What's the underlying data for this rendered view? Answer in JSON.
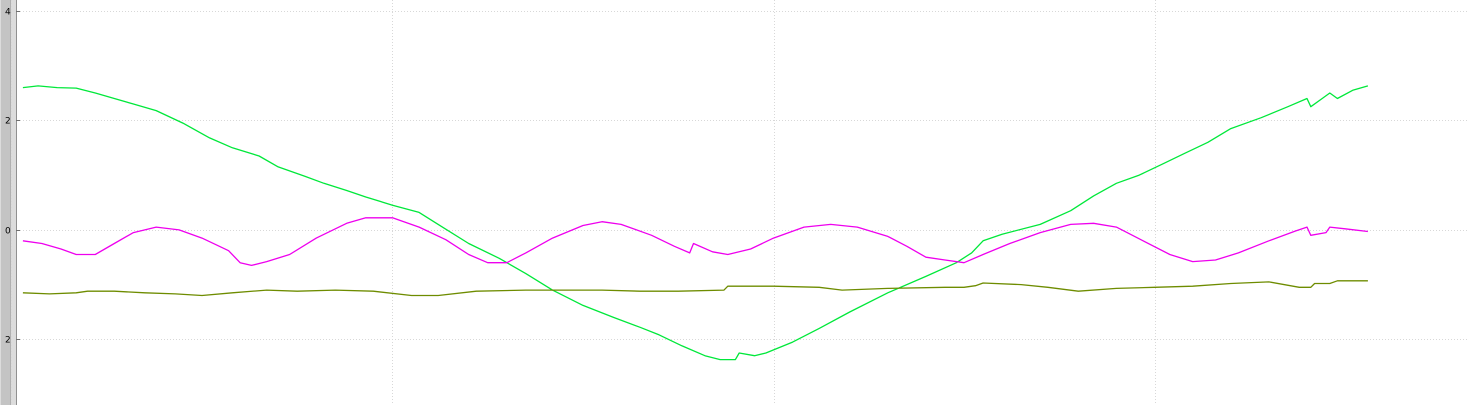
{
  "chart_data": {
    "type": "line",
    "title": "",
    "xlabel": "",
    "ylabel": "",
    "grid": true,
    "ylim": [
      -3.2,
      4.2
    ],
    "xlim": [
      -0.03,
      3.82
    ],
    "y_ticks": [
      {
        "value": 4,
        "label": "4"
      },
      {
        "value": 2,
        "label": "2"
      },
      {
        "value": 0,
        "label": "0"
      },
      {
        "value": -2,
        "label": "2"
      }
    ],
    "x_grid_values": [
      0,
      1,
      2,
      3
    ],
    "series": [
      {
        "color": "#00e83a",
        "points": [
          [
            0.03,
            2.6
          ],
          [
            0.07,
            2.63
          ],
          [
            0.12,
            2.6
          ],
          [
            0.17,
            2.59
          ],
          [
            0.22,
            2.5
          ],
          [
            0.27,
            2.4
          ],
          [
            0.32,
            2.3
          ],
          [
            0.38,
            2.18
          ],
          [
            0.45,
            1.95
          ],
          [
            0.52,
            1.68
          ],
          [
            0.58,
            1.5
          ],
          [
            0.65,
            1.35
          ],
          [
            0.7,
            1.15
          ],
          [
            0.77,
            0.98
          ],
          [
            0.82,
            0.85
          ],
          [
            0.88,
            0.72
          ],
          [
            0.93,
            0.6
          ],
          [
            1.0,
            0.45
          ],
          [
            1.07,
            0.32
          ],
          [
            1.12,
            0.1
          ],
          [
            1.2,
            -0.25
          ],
          [
            1.28,
            -0.52
          ],
          [
            1.35,
            -0.8
          ],
          [
            1.42,
            -1.1
          ],
          [
            1.5,
            -1.38
          ],
          [
            1.58,
            -1.6
          ],
          [
            1.65,
            -1.78
          ],
          [
            1.7,
            -1.92
          ],
          [
            1.76,
            -2.12
          ],
          [
            1.82,
            -2.3
          ],
          [
            1.86,
            -2.37
          ],
          [
            1.9,
            -2.37
          ],
          [
            1.91,
            -2.25
          ],
          [
            1.95,
            -2.3
          ],
          [
            1.98,
            -2.25
          ],
          [
            2.05,
            -2.05
          ],
          [
            2.12,
            -1.8
          ],
          [
            2.2,
            -1.5
          ],
          [
            2.3,
            -1.15
          ],
          [
            2.4,
            -0.85
          ],
          [
            2.48,
            -0.6
          ],
          [
            2.52,
            -0.42
          ],
          [
            2.55,
            -0.2
          ],
          [
            2.6,
            -0.08
          ],
          [
            2.7,
            0.1
          ],
          [
            2.78,
            0.35
          ],
          [
            2.84,
            0.62
          ],
          [
            2.9,
            0.85
          ],
          [
            2.96,
            1.0
          ],
          [
            3.02,
            1.2
          ],
          [
            3.08,
            1.4
          ],
          [
            3.14,
            1.6
          ],
          [
            3.2,
            1.85
          ],
          [
            3.28,
            2.05
          ],
          [
            3.35,
            2.25
          ],
          [
            3.4,
            2.4
          ],
          [
            3.41,
            2.25
          ],
          [
            3.44,
            2.4
          ],
          [
            3.46,
            2.5
          ],
          [
            3.48,
            2.4
          ],
          [
            3.52,
            2.55
          ],
          [
            3.56,
            2.63
          ]
        ]
      },
      {
        "color": "#ee00ee",
        "points": [
          [
            0.03,
            -0.2
          ],
          [
            0.08,
            -0.25
          ],
          [
            0.13,
            -0.35
          ],
          [
            0.17,
            -0.45
          ],
          [
            0.22,
            -0.45
          ],
          [
            0.27,
            -0.25
          ],
          [
            0.32,
            -0.05
          ],
          [
            0.38,
            0.05
          ],
          [
            0.44,
            0.0
          ],
          [
            0.5,
            -0.15
          ],
          [
            0.57,
            -0.38
          ],
          [
            0.6,
            -0.6
          ],
          [
            0.63,
            -0.65
          ],
          [
            0.67,
            -0.58
          ],
          [
            0.73,
            -0.45
          ],
          [
            0.8,
            -0.15
          ],
          [
            0.88,
            0.12
          ],
          [
            0.93,
            0.22
          ],
          [
            1.0,
            0.22
          ],
          [
            1.07,
            0.05
          ],
          [
            1.14,
            -0.18
          ],
          [
            1.2,
            -0.45
          ],
          [
            1.25,
            -0.6
          ],
          [
            1.3,
            -0.6
          ],
          [
            1.35,
            -0.42
          ],
          [
            1.42,
            -0.15
          ],
          [
            1.5,
            0.08
          ],
          [
            1.55,
            0.15
          ],
          [
            1.6,
            0.1
          ],
          [
            1.68,
            -0.1
          ],
          [
            1.74,
            -0.3
          ],
          [
            1.78,
            -0.42
          ],
          [
            1.79,
            -0.25
          ],
          [
            1.84,
            -0.4
          ],
          [
            1.88,
            -0.45
          ],
          [
            1.94,
            -0.35
          ],
          [
            2.0,
            -0.15
          ],
          [
            2.08,
            0.05
          ],
          [
            2.15,
            0.1
          ],
          [
            2.22,
            0.05
          ],
          [
            2.3,
            -0.12
          ],
          [
            2.35,
            -0.3
          ],
          [
            2.4,
            -0.5
          ],
          [
            2.45,
            -0.55
          ],
          [
            2.5,
            -0.6
          ],
          [
            2.55,
            -0.45
          ],
          [
            2.62,
            -0.25
          ],
          [
            2.7,
            -0.05
          ],
          [
            2.78,
            0.1
          ],
          [
            2.84,
            0.12
          ],
          [
            2.9,
            0.05
          ],
          [
            2.97,
            -0.2
          ],
          [
            3.04,
            -0.45
          ],
          [
            3.1,
            -0.58
          ],
          [
            3.16,
            -0.55
          ],
          [
            3.22,
            -0.42
          ],
          [
            3.3,
            -0.2
          ],
          [
            3.37,
            -0.02
          ],
          [
            3.4,
            0.05
          ],
          [
            3.41,
            -0.1
          ],
          [
            3.45,
            -0.05
          ],
          [
            3.46,
            0.05
          ],
          [
            3.5,
            0.02
          ],
          [
            3.56,
            -0.03
          ]
        ]
      },
      {
        "color": "#6e8c00",
        "points": [
          [
            0.03,
            -1.15
          ],
          [
            0.1,
            -1.17
          ],
          [
            0.17,
            -1.15
          ],
          [
            0.2,
            -1.12
          ],
          [
            0.27,
            -1.12
          ],
          [
            0.35,
            -1.15
          ],
          [
            0.43,
            -1.17
          ],
          [
            0.5,
            -1.2
          ],
          [
            0.58,
            -1.15
          ],
          [
            0.67,
            -1.1
          ],
          [
            0.75,
            -1.12
          ],
          [
            0.85,
            -1.1
          ],
          [
            0.95,
            -1.12
          ],
          [
            1.05,
            -1.2
          ],
          [
            1.12,
            -1.2
          ],
          [
            1.22,
            -1.12
          ],
          [
            1.35,
            -1.1
          ],
          [
            1.45,
            -1.1
          ],
          [
            1.55,
            -1.1
          ],
          [
            1.65,
            -1.12
          ],
          [
            1.75,
            -1.12
          ],
          [
            1.87,
            -1.1
          ],
          [
            1.88,
            -1.03
          ],
          [
            2.0,
            -1.03
          ],
          [
            2.12,
            -1.05
          ],
          [
            2.18,
            -1.1
          ],
          [
            2.3,
            -1.07
          ],
          [
            2.45,
            -1.05
          ],
          [
            2.5,
            -1.05
          ],
          [
            2.53,
            -1.02
          ],
          [
            2.55,
            -0.97
          ],
          [
            2.65,
            -1.0
          ],
          [
            2.72,
            -1.05
          ],
          [
            2.8,
            -1.12
          ],
          [
            2.9,
            -1.07
          ],
          [
            3.0,
            -1.05
          ],
          [
            3.1,
            -1.03
          ],
          [
            3.2,
            -0.98
          ],
          [
            3.3,
            -0.95
          ],
          [
            3.38,
            -1.05
          ],
          [
            3.41,
            -1.05
          ],
          [
            3.42,
            -0.98
          ],
          [
            3.46,
            -0.98
          ],
          [
            3.48,
            -0.93
          ],
          [
            3.56,
            -0.93
          ]
        ]
      }
    ]
  }
}
